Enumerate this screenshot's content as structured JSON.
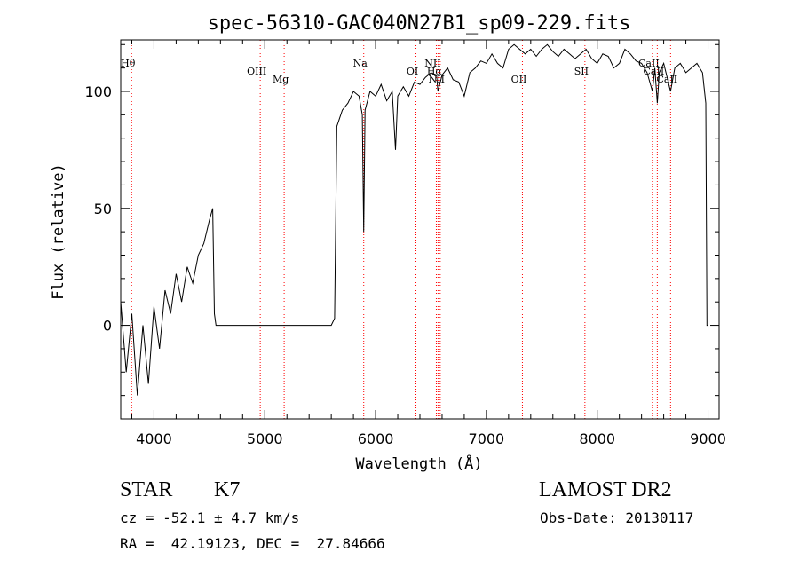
{
  "chart_data": {
    "type": "line",
    "title": "spec-56310-GAC040N27B1_sp09-229.fits",
    "xlabel": "Wavelength (Å)",
    "ylabel": "Flux (relative)",
    "xlim": [
      3700,
      9100
    ],
    "ylim": [
      -40,
      122
    ],
    "xticks": [
      4000,
      5000,
      6000,
      7000,
      8000,
      9000
    ],
    "yticks": [
      0,
      50,
      100
    ],
    "grid": false,
    "series": [
      {
        "x": [
          3700,
          3750,
          3800,
          3850,
          3900,
          3950,
          4000,
          4050,
          4100,
          4150,
          4200,
          4250,
          4300,
          4350,
          4400,
          4450,
          4500,
          4530,
          4545,
          4560,
          5600,
          5630,
          5650,
          5700,
          5750,
          5800,
          5850,
          5880,
          5893,
          5905,
          5950,
          6000,
          6050,
          6100,
          6150,
          6180,
          6200,
          6250,
          6300,
          6350,
          6400,
          6450,
          6500,
          6550,
          6563,
          6600,
          6650,
          6700,
          6750,
          6800,
          6850,
          6900,
          6950,
          7000,
          7050,
          7100,
          7150,
          7200,
          7250,
          7300,
          7350,
          7400,
          7450,
          7500,
          7550,
          7600,
          7650,
          7700,
          7750,
          7800,
          7850,
          7900,
          7950,
          8000,
          8050,
          8100,
          8150,
          8200,
          8250,
          8300,
          8350,
          8400,
          8450,
          8498,
          8520,
          8542,
          8560,
          8600,
          8662,
          8700,
          8750,
          8800,
          8850,
          8900,
          8950,
          8980,
          8990,
          9000
        ],
        "y": [
          10,
          -20,
          5,
          -30,
          0,
          -25,
          8,
          -10,
          15,
          5,
          22,
          10,
          25,
          18,
          30,
          35,
          45,
          50,
          5,
          0,
          0,
          3,
          85,
          92,
          95,
          100,
          98,
          90,
          40,
          92,
          100,
          98,
          103,
          96,
          100,
          75,
          98,
          102,
          98,
          104,
          103,
          106,
          108,
          107,
          100,
          107,
          110,
          105,
          104,
          98,
          108,
          110,
          113,
          112,
          116,
          112,
          110,
          118,
          120,
          118,
          116,
          118,
          115,
          118,
          120,
          117,
          115,
          118,
          116,
          114,
          116,
          118,
          114,
          112,
          116,
          115,
          110,
          112,
          118,
          116,
          113,
          112,
          108,
          100,
          110,
          95,
          108,
          112,
          100,
          110,
          112,
          108,
          110,
          112,
          108,
          95,
          0,
          0
        ]
      }
    ],
    "lines": [
      {
        "name": "Hθ",
        "x": 3798
      },
      {
        "name": "OIII",
        "x": 4959
      },
      {
        "name": "Mg",
        "x": 5175
      },
      {
        "name": "Na",
        "x": 5893
      },
      {
        "name": "OI",
        "x": 6364
      },
      {
        "name": "NII",
        "x": 6548
      },
      {
        "name": "Hα",
        "x": 6563
      },
      {
        "name": "NII",
        "x": 6583
      },
      {
        "name": "OII",
        "x": 7325
      },
      {
        "name": "SII",
        "x": 7889
      },
      {
        "name": "CaII",
        "x": 8498
      },
      {
        "name": "CaII",
        "x": 8542
      },
      {
        "name": "CaII",
        "x": 8662
      }
    ]
  },
  "info": {
    "object_type": "STAR",
    "subclass": "K7",
    "survey": "LAMOST DR2",
    "velocity": "cz = -52.1 ± 4.7 km/s",
    "obs_date": "Obs-Date: 20130117",
    "coords": "RA =  42.19123, DEC =  27.84666"
  },
  "line_color": "#ff0000"
}
